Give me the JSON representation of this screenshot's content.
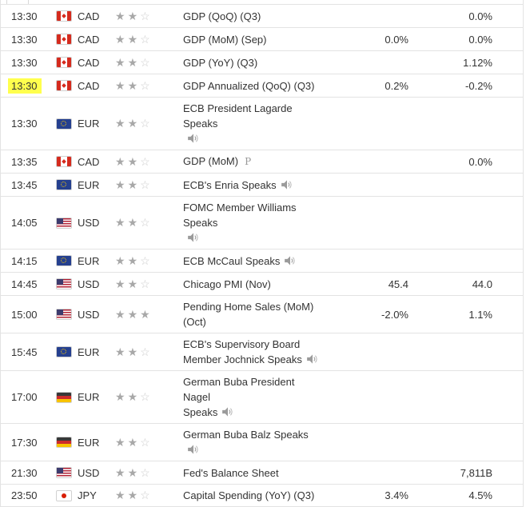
{
  "colors": {
    "highlight": "#ffff4d",
    "row_border": "#e3e3e3",
    "text": "#333333",
    "star_filled": "#a8a8a8",
    "star_empty": "#cccccc",
    "icon_gray": "#999999"
  },
  "icons": {
    "star_filled_glyph": "★",
    "star_empty_glyph": "☆",
    "preliminary_glyph": "P"
  },
  "rows": [
    {
      "time": "13:30",
      "highlighted": false,
      "flag": "canada",
      "currency": "CAD",
      "stars_filled": 2,
      "stars_total": 3,
      "event_lines": [
        "GDP (QoQ) (Q3)"
      ],
      "speaker": false,
      "preliminary": false,
      "actual": "",
      "forecast": "",
      "previous": "0.0%"
    },
    {
      "time": "13:30",
      "highlighted": false,
      "flag": "canada",
      "currency": "CAD",
      "stars_filled": 2,
      "stars_total": 3,
      "event_lines": [
        "GDP (MoM) (Sep)"
      ],
      "speaker": false,
      "preliminary": false,
      "actual": "",
      "forecast": "0.0%",
      "previous": "0.0%"
    },
    {
      "time": "13:30",
      "highlighted": false,
      "flag": "canada",
      "currency": "CAD",
      "stars_filled": 2,
      "stars_total": 3,
      "event_lines": [
        "GDP (YoY) (Q3)"
      ],
      "speaker": false,
      "preliminary": false,
      "actual": "",
      "forecast": "",
      "previous": "1.12%"
    },
    {
      "time": "13:30",
      "highlighted": true,
      "flag": "canada",
      "currency": "CAD",
      "stars_filled": 2,
      "stars_total": 3,
      "event_lines": [
        "GDP Annualized (QoQ) (Q3)"
      ],
      "speaker": false,
      "preliminary": false,
      "actual": "",
      "forecast": "0.2%",
      "previous": "-0.2%"
    },
    {
      "time": "13:30",
      "highlighted": false,
      "flag": "europe",
      "currency": "EUR",
      "stars_filled": 2,
      "stars_total": 3,
      "event_lines": [
        "ECB President Lagarde Speaks",
        ""
      ],
      "speaker": true,
      "preliminary": false,
      "actual": "",
      "forecast": "",
      "previous": ""
    },
    {
      "time": "13:35",
      "highlighted": false,
      "flag": "canada",
      "currency": "CAD",
      "stars_filled": 2,
      "stars_total": 3,
      "event_lines": [
        "GDP (MoM)"
      ],
      "speaker": false,
      "preliminary": true,
      "actual": "",
      "forecast": "",
      "previous": "0.0%"
    },
    {
      "time": "13:45",
      "highlighted": false,
      "flag": "europe",
      "currency": "EUR",
      "stars_filled": 2,
      "stars_total": 3,
      "event_lines": [
        "ECB's Enria Speaks"
      ],
      "speaker": true,
      "preliminary": false,
      "actual": "",
      "forecast": "",
      "previous": ""
    },
    {
      "time": "14:05",
      "highlighted": false,
      "flag": "usa",
      "currency": "USD",
      "stars_filled": 2,
      "stars_total": 3,
      "event_lines": [
        "FOMC Member Williams Speaks",
        ""
      ],
      "speaker": true,
      "preliminary": false,
      "actual": "",
      "forecast": "",
      "previous": ""
    },
    {
      "time": "14:15",
      "highlighted": false,
      "flag": "europe",
      "currency": "EUR",
      "stars_filled": 2,
      "stars_total": 3,
      "event_lines": [
        "ECB McCaul Speaks"
      ],
      "speaker": true,
      "preliminary": false,
      "actual": "",
      "forecast": "",
      "previous": ""
    },
    {
      "time": "14:45",
      "highlighted": false,
      "flag": "usa",
      "currency": "USD",
      "stars_filled": 2,
      "stars_total": 3,
      "event_lines": [
        "Chicago PMI (Nov)"
      ],
      "speaker": false,
      "preliminary": false,
      "actual": "",
      "forecast": "45.4",
      "previous": "44.0"
    },
    {
      "time": "15:00",
      "highlighted": false,
      "flag": "usa",
      "currency": "USD",
      "stars_filled": 3,
      "stars_total": 3,
      "event_lines": [
        "Pending Home Sales (MoM)",
        "(Oct)"
      ],
      "speaker": false,
      "preliminary": false,
      "actual": "",
      "forecast": "-2.0%",
      "previous": "1.1%"
    },
    {
      "time": "15:45",
      "highlighted": false,
      "flag": "europe",
      "currency": "EUR",
      "stars_filled": 2,
      "stars_total": 3,
      "event_lines": [
        "ECB's Supervisory Board",
        "Member Jochnick Speaks"
      ],
      "speaker": true,
      "preliminary": false,
      "actual": "",
      "forecast": "",
      "previous": ""
    },
    {
      "time": "17:00",
      "highlighted": false,
      "flag": "germany",
      "currency": "EUR",
      "stars_filled": 2,
      "stars_total": 3,
      "event_lines": [
        "German Buba President Nagel",
        "Speaks"
      ],
      "speaker": true,
      "preliminary": false,
      "actual": "",
      "forecast": "",
      "previous": ""
    },
    {
      "time": "17:30",
      "highlighted": false,
      "flag": "germany",
      "currency": "EUR",
      "stars_filled": 2,
      "stars_total": 3,
      "event_lines": [
        "German Buba Balz Speaks"
      ],
      "speaker": true,
      "preliminary": false,
      "actual": "",
      "forecast": "",
      "previous": ""
    },
    {
      "time": "21:30",
      "highlighted": false,
      "flag": "usa",
      "currency": "USD",
      "stars_filled": 2,
      "stars_total": 3,
      "event_lines": [
        "Fed's Balance Sheet"
      ],
      "speaker": false,
      "preliminary": false,
      "actual": "",
      "forecast": "",
      "previous": "7,811B"
    },
    {
      "time": "23:50",
      "highlighted": false,
      "flag": "japan",
      "currency": "JPY",
      "stars_filled": 2,
      "stars_total": 3,
      "event_lines": [
        "Capital Spending (YoY) (Q3)"
      ],
      "speaker": false,
      "preliminary": false,
      "actual": "",
      "forecast": "3.4%",
      "previous": "4.5%"
    }
  ]
}
